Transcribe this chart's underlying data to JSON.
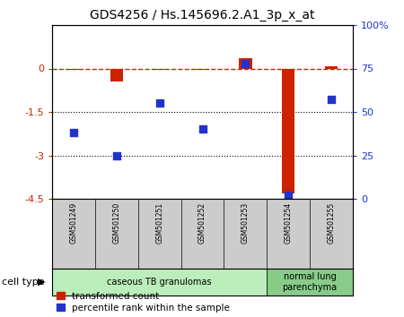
{
  "title": "GDS4256 / Hs.145696.2.A1_3p_x_at",
  "samples": [
    "GSM501249",
    "GSM501250",
    "GSM501251",
    "GSM501252",
    "GSM501253",
    "GSM501254",
    "GSM501255"
  ],
  "transformed_count": [
    -0.05,
    -0.45,
    -0.05,
    -0.05,
    0.35,
    -4.3,
    0.07
  ],
  "percentile_rank": [
    38,
    25,
    55,
    40,
    78,
    2,
    57
  ],
  "ylim_left": [
    -4.5,
    1.5
  ],
  "ylim_right": [
    0,
    100
  ],
  "yticks_left": [
    0,
    -1.5,
    -3,
    -4.5
  ],
  "yticks_right": [
    0,
    25,
    50,
    75,
    100
  ],
  "ytick_labels_left": [
    "0",
    "-1.5",
    "-3",
    "-4.5"
  ],
  "ytick_labels_right": [
    "0",
    "25",
    "50",
    "75",
    "100%"
  ],
  "dotted_lines": [
    -1.5,
    -3
  ],
  "cell_type_groups": [
    {
      "label": "caseous TB granulomas",
      "samples_idx": [
        0,
        1,
        2,
        3,
        4
      ],
      "color": "#bbeebb"
    },
    {
      "label": "normal lung\nparenchyma",
      "samples_idx": [
        5,
        6
      ],
      "color": "#88cc88"
    }
  ],
  "red_color": "#cc2200",
  "blue_color": "#2233cc",
  "bar_width": 0.3,
  "scatter_size": 40,
  "legend_red": "transformed count",
  "legend_blue": "percentile rank within the sample",
  "cell_type_label": "cell type",
  "bg_plot": "#ffffff",
  "bg_sample_area": "#cccccc",
  "dashed_line_color": "#cc2200"
}
